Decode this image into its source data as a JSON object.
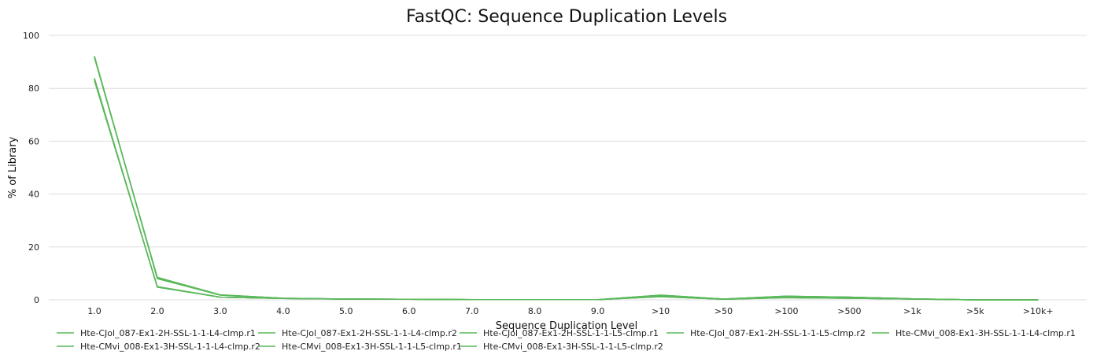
{
  "chart_data": {
    "type": "line",
    "title": "FastQC: Sequence Duplication Levels",
    "xlabel": "Sequence Duplication Level",
    "ylabel": "% of Library",
    "categories": [
      "1.0",
      "2.0",
      "3.0",
      "4.0",
      "5.0",
      "6.0",
      "7.0",
      "8.0",
      "9.0",
      ">10",
      ">50",
      ">100",
      ">500",
      ">1k",
      ">5k",
      ">10k+"
    ],
    "ylim": [
      0,
      100
    ],
    "yticks": [
      0,
      20,
      40,
      60,
      80,
      100
    ],
    "grid": true,
    "legend_position": "bottom",
    "line_color": "#5cb85c",
    "series": [
      {
        "name": "Hte-CJol_087-Ex1-2H-SSL-1-1-L4-clmp.r1",
        "values": [
          92.2,
          8.0,
          1.8,
          0.6,
          0.3,
          0.2,
          0.1,
          0.05,
          0.05,
          1.2,
          0.2,
          0.8,
          0.6,
          0.3,
          0.0,
          0.0
        ]
      },
      {
        "name": "Hte-CJol_087-Ex1-2H-SSL-1-1-L4-clmp.r2",
        "values": [
          91.8,
          8.4,
          1.9,
          0.6,
          0.3,
          0.2,
          0.1,
          0.05,
          0.05,
          1.3,
          0.2,
          0.9,
          0.6,
          0.3,
          0.0,
          0.0
        ]
      },
      {
        "name": "Hte-CJol_087-Ex1-2H-SSL-1-1-L5-clmp.r1",
        "values": [
          92.0,
          8.1,
          1.8,
          0.6,
          0.3,
          0.2,
          0.1,
          0.05,
          0.05,
          1.2,
          0.2,
          0.8,
          0.6,
          0.3,
          0.0,
          0.0
        ]
      },
      {
        "name": "Hte-CJol_087-Ex1-2H-SSL-1-1-L5-clmp.r2",
        "values": [
          91.6,
          8.5,
          1.9,
          0.6,
          0.3,
          0.2,
          0.1,
          0.05,
          0.05,
          1.3,
          0.2,
          0.9,
          0.6,
          0.3,
          0.0,
          0.0
        ]
      },
      {
        "name": "Hte-CMvi_008-Ex1-3H-SSL-1-1-L4-clmp.r1",
        "values": [
          83.8,
          4.8,
          1.0,
          0.5,
          0.3,
          0.2,
          0.1,
          0.05,
          0.05,
          1.7,
          0.3,
          1.3,
          1.0,
          0.4,
          0.0,
          0.0
        ]
      },
      {
        "name": "Hte-CMvi_008-Ex1-3H-SSL-1-1-L4-clmp.r2",
        "values": [
          83.2,
          5.0,
          1.0,
          0.5,
          0.3,
          0.2,
          0.1,
          0.05,
          0.05,
          1.8,
          0.3,
          1.4,
          1.0,
          0.4,
          0.0,
          0.0
        ]
      },
      {
        "name": "Hte-CMvi_008-Ex1-3H-SSL-1-1-L5-clmp.r1",
        "values": [
          83.6,
          4.8,
          1.0,
          0.5,
          0.3,
          0.2,
          0.1,
          0.05,
          0.05,
          1.7,
          0.3,
          1.3,
          1.0,
          0.4,
          0.0,
          0.0
        ]
      },
      {
        "name": "Hte-CMvi_008-Ex1-3H-SSL-1-1-L5-clmp.r2",
        "values": [
          82.9,
          5.0,
          1.0,
          0.5,
          0.3,
          0.2,
          0.1,
          0.05,
          0.05,
          1.8,
          0.3,
          1.4,
          1.0,
          0.4,
          0.0,
          0.0
        ]
      }
    ]
  }
}
